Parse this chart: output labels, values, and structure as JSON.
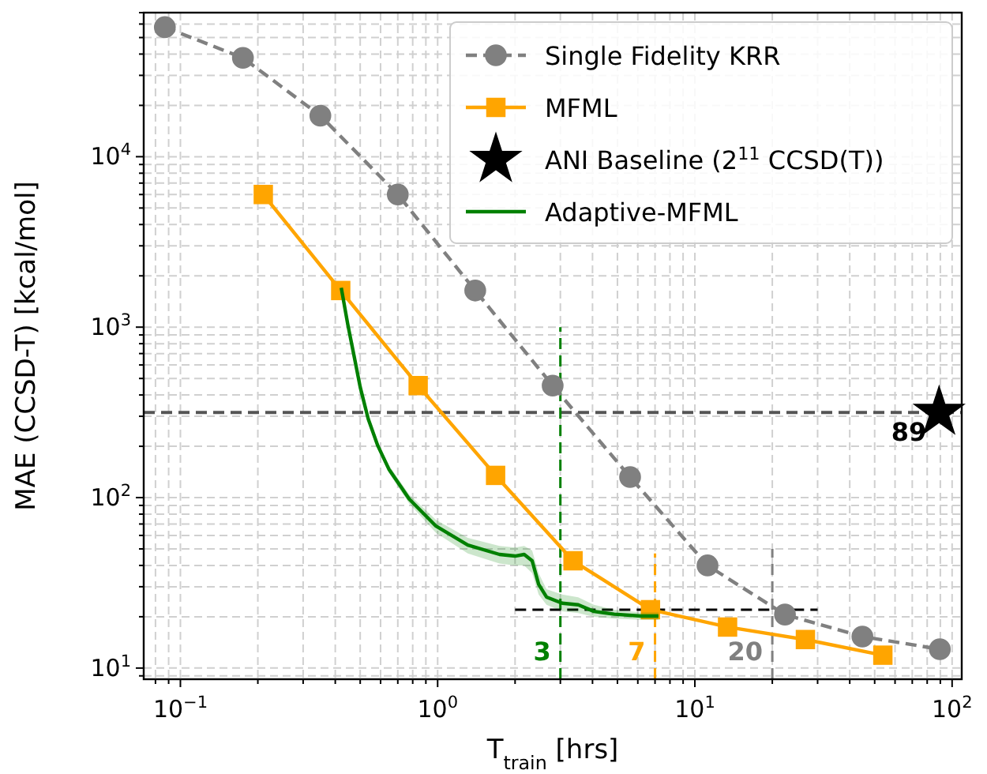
{
  "chart_data": {
    "type": "line",
    "xlabel": "T$_{train}$ [hrs]",
    "ylabel": "MAE (CCSD-T) [kcal/mol]",
    "log": "xy",
    "grid": true,
    "legend": "top right",
    "xlim": [
      0.072,
      109
    ],
    "ylim": [
      8.6,
      70000
    ],
    "xticks": [
      {
        "value": 0.08,
        "label": null
      },
      {
        "value": 0.09,
        "label": null
      },
      {
        "value": 0.1,
        "label": "10$^{−1}$"
      },
      {
        "value": 0.2,
        "label": null
      },
      {
        "value": 0.3,
        "label": null
      },
      {
        "value": 0.4,
        "label": null
      },
      {
        "value": 0.5,
        "label": null
      },
      {
        "value": 0.6,
        "label": null
      },
      {
        "value": 0.7,
        "label": null
      },
      {
        "value": 0.8,
        "label": null
      },
      {
        "value": 0.9,
        "label": null
      },
      {
        "value": 1,
        "label": "10$^{0}$"
      },
      {
        "value": 2,
        "label": null
      },
      {
        "value": 3,
        "label": null
      },
      {
        "value": 4,
        "label": null
      },
      {
        "value": 5,
        "label": null
      },
      {
        "value": 6,
        "label": null
      },
      {
        "value": 7,
        "label": null
      },
      {
        "value": 8,
        "label": null
      },
      {
        "value": 9,
        "label": null
      },
      {
        "value": 10,
        "label": "10$^{1}$"
      },
      {
        "value": 20,
        "label": null
      },
      {
        "value": 30,
        "label": null
      },
      {
        "value": 40,
        "label": null
      },
      {
        "value": 50,
        "label": null
      },
      {
        "value": 60,
        "label": null
      },
      {
        "value": 70,
        "label": null
      },
      {
        "value": 80,
        "label": null
      },
      {
        "value": 90,
        "label": null
      },
      {
        "value": 100,
        "label": "10$^{2}$"
      }
    ],
    "yticks": [
      {
        "value": 9,
        "label": null
      },
      {
        "value": 10,
        "label": "10$^{1}$"
      },
      {
        "value": 20,
        "label": null
      },
      {
        "value": 30,
        "label": null
      },
      {
        "value": 40,
        "label": null
      },
      {
        "value": 50,
        "label": null
      },
      {
        "value": 60,
        "label": null
      },
      {
        "value": 70,
        "label": null
      },
      {
        "value": 80,
        "label": null
      },
      {
        "value": 90,
        "label": null
      },
      {
        "value": 100,
        "label": "10$^{2}$"
      },
      {
        "value": 200,
        "label": null
      },
      {
        "value": 300,
        "label": null
      },
      {
        "value": 400,
        "label": null
      },
      {
        "value": 500,
        "label": null
      },
      {
        "value": 600,
        "label": null
      },
      {
        "value": 700,
        "label": null
      },
      {
        "value": 800,
        "label": null
      },
      {
        "value": 900,
        "label": null
      },
      {
        "value": 1000,
        "label": "10$^{3}$"
      },
      {
        "value": 2000,
        "label": null
      },
      {
        "value": 3000,
        "label": null
      },
      {
        "value": 4000,
        "label": null
      },
      {
        "value": 5000,
        "label": null
      },
      {
        "value": 6000,
        "label": null
      },
      {
        "value": 7000,
        "label": null
      },
      {
        "value": 8000,
        "label": null
      },
      {
        "value": 9000,
        "label": null
      },
      {
        "value": 10000,
        "label": "10$^{4}$"
      },
      {
        "value": 20000,
        "label": null
      },
      {
        "value": 30000,
        "label": null
      },
      {
        "value": 40000,
        "label": null
      },
      {
        "value": 50000,
        "label": null
      },
      {
        "value": 60000,
        "label": null
      },
      {
        "value": 70000,
        "label": null
      }
    ],
    "ref_lines": [
      {
        "axis": "y",
        "value": 316,
        "color": "#555555",
        "line_style": "dashed"
      }
    ],
    "series": [
      {
        "name": "Single Fidelity KRR",
        "color": "#808080",
        "marker": "circle",
        "line_style": "dashed",
        "x": [
          0.087,
          0.175,
          0.35,
          0.7,
          1.4,
          2.8,
          5.6,
          11.2,
          22.4,
          44.8,
          89.6
        ],
        "values": [
          57500,
          38000,
          17400,
          6000,
          1640,
          454,
          132,
          40,
          20.6,
          15.3,
          12.9
        ]
      },
      {
        "name": "MFML",
        "color": "#ffa500",
        "marker": "square",
        "line_style": "solid",
        "x": [
          0.21,
          0.42,
          0.84,
          1.68,
          3.36,
          6.72,
          13.4,
          26.9,
          53.8
        ],
        "values": [
          6000,
          1640,
          454,
          135,
          42.6,
          22,
          17.4,
          14.7,
          11.9
        ]
      },
      {
        "name": "ANI Baseline (2$^{11}$ CCSD(T))",
        "type": "scatter",
        "color": "#000000",
        "marker": "star",
        "x": [
          89
        ],
        "values": [
          316
        ]
      },
      {
        "name": "Adaptive-MFML",
        "color": "#008000",
        "marker": "none",
        "line_style": "solid",
        "x": [
          0.422,
          0.447,
          0.473,
          0.5,
          0.537,
          0.585,
          0.646,
          0.776,
          0.986,
          1.31,
          1.74,
          2.0,
          2.17,
          2.33,
          2.47,
          2.65,
          3.05,
          3.52,
          4.05,
          4.86,
          6.18,
          7.22
        ],
        "values": [
          1700,
          1045,
          681,
          445,
          290,
          202,
          147,
          98,
          68,
          52.7,
          46.4,
          45.4,
          46.4,
          42.6,
          31,
          26.1,
          24,
          23.5,
          21.5,
          20.7,
          20.2,
          20.2
        ],
        "lower": [
          1700,
          1045,
          681,
          445,
          285,
          195,
          140,
          92,
          62,
          47,
          41,
          40,
          40,
          36,
          27,
          23.5,
          21.5,
          21,
          20,
          19.5,
          19.2,
          19.2
        ],
        "upper": [
          1700,
          1045,
          681,
          445,
          295,
          210,
          155,
          104,
          74,
          58,
          52,
          51,
          52,
          49,
          36,
          29,
          27,
          26,
          23.5,
          22,
          21.2,
          21.2
        ]
      },
      {
        "type": "line",
        "color": "#008000",
        "marker": "none",
        "line_style": "dashed",
        "x": [
          3,
          3
        ],
        "values": [
          8.6,
          1000
        ]
      },
      {
        "type": "line",
        "color": "#ffa500",
        "marker": "none",
        "line_style": "dashed",
        "x": [
          7,
          7
        ],
        "values": [
          8.6,
          47
        ]
      },
      {
        "type": "line",
        "color": "#808080",
        "marker": "none",
        "line_style": "dashed",
        "x": [
          20,
          20
        ],
        "values": [
          8.6,
          50
        ]
      },
      {
        "type": "line",
        "color": "#000000",
        "marker": "none",
        "line_style": "dashed",
        "x": [
          2,
          30
        ],
        "values": [
          22,
          22
        ]
      }
    ],
    "annotations": [
      "3",
      "7",
      "20",
      "89"
    ]
  }
}
